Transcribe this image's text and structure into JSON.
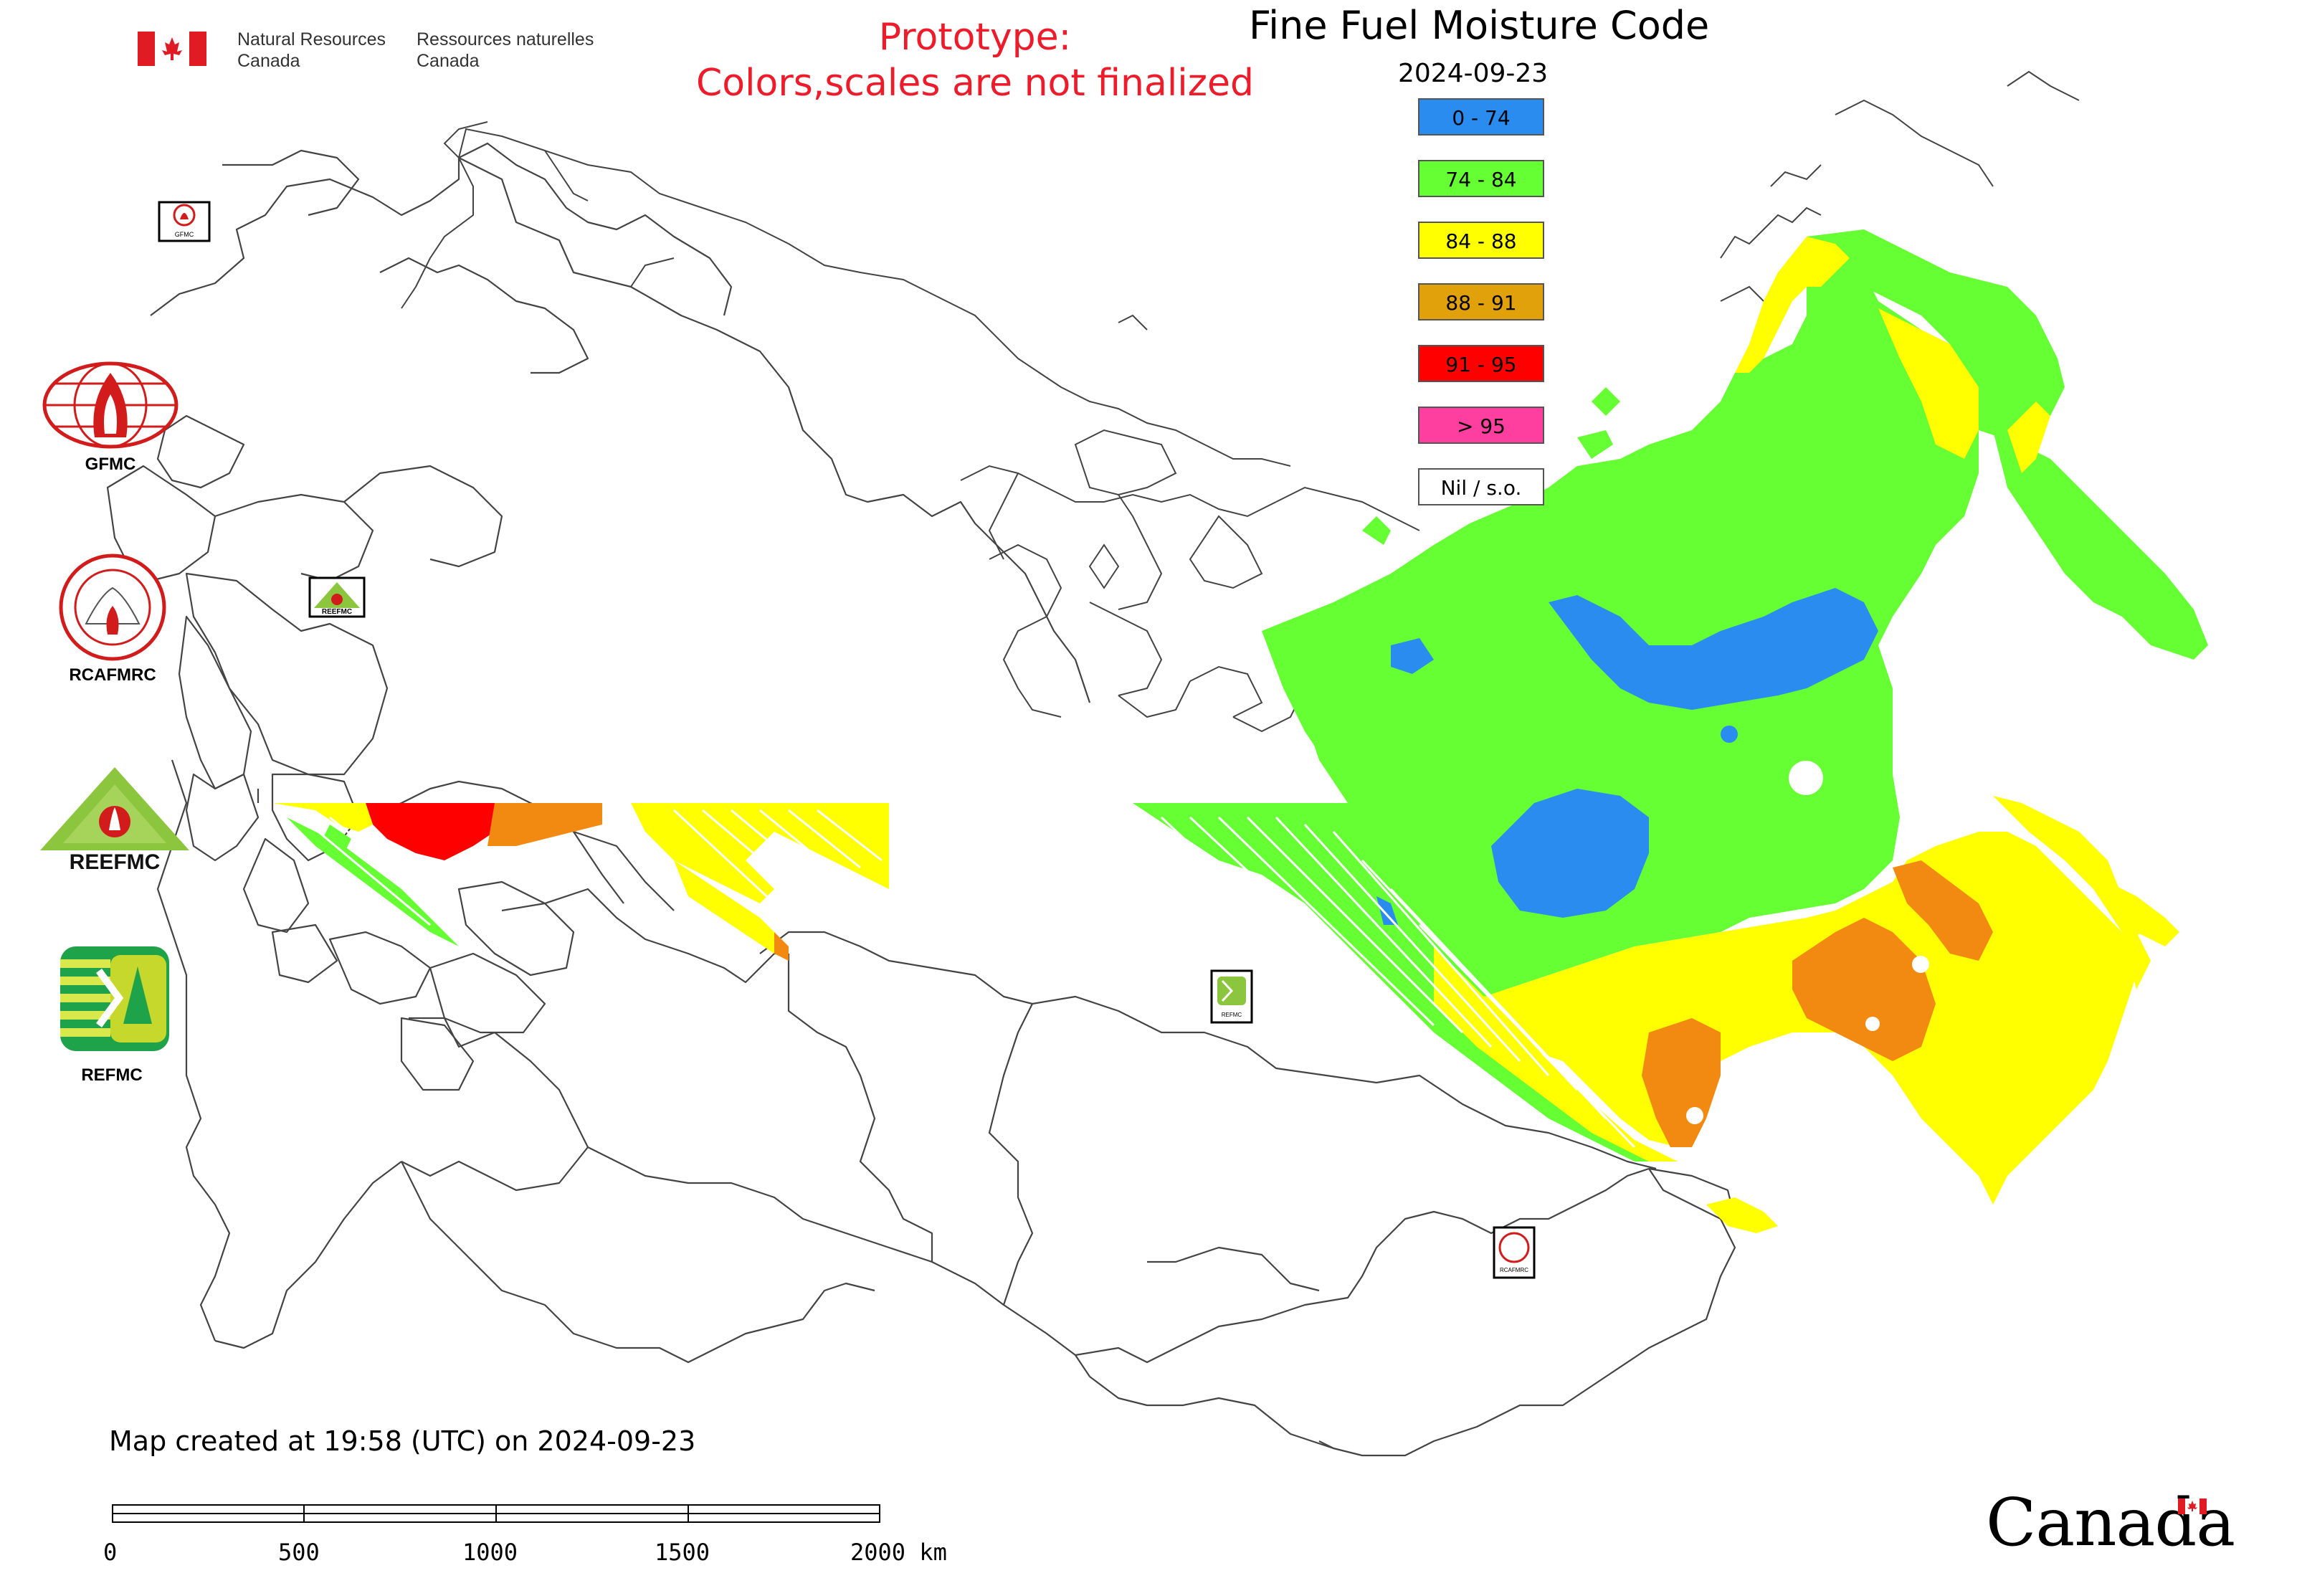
{
  "header": {
    "org_en": "Natural Resources\nCanada",
    "org_fr": "Ressources naturelles\nCanada",
    "prototype_line1": "Prototype:",
    "prototype_line2": "Colors,scales are not finalized",
    "title": "Fine Fuel Moisture Code",
    "date": "2024-09-23"
  },
  "legend": [
    {
      "label": "0 - 74",
      "color": "#2b8cf0"
    },
    {
      "label": "74 - 84",
      "color": "#66ff33"
    },
    {
      "label": "84 - 88",
      "color": "#ffff00"
    },
    {
      "label": "88 - 91",
      "color": "#e1a10a"
    },
    {
      "label": "91 - 95",
      "color": "#ff0000"
    },
    {
      "label": "> 95",
      "color": "#ff3fa0"
    },
    {
      "label": "Nil / s.o.",
      "color": "#ffffff"
    }
  ],
  "agencies": [
    {
      "label": "GFMC"
    },
    {
      "label": "RCAFMRC"
    },
    {
      "label": "REEFMC"
    },
    {
      "label": "REFMC"
    }
  ],
  "map_badges": {
    "gfmc": "GFMC",
    "reefmc": "REEFMC",
    "refmc": "REFMC",
    "rcafmrc": "RCAFMRC"
  },
  "footer": {
    "created": "Map created at 19:58 (UTC) on 2024-09-23",
    "scale_labels": [
      "0",
      "500",
      "1000",
      "1500",
      "2000 km"
    ],
    "wordmark": "Canada"
  }
}
